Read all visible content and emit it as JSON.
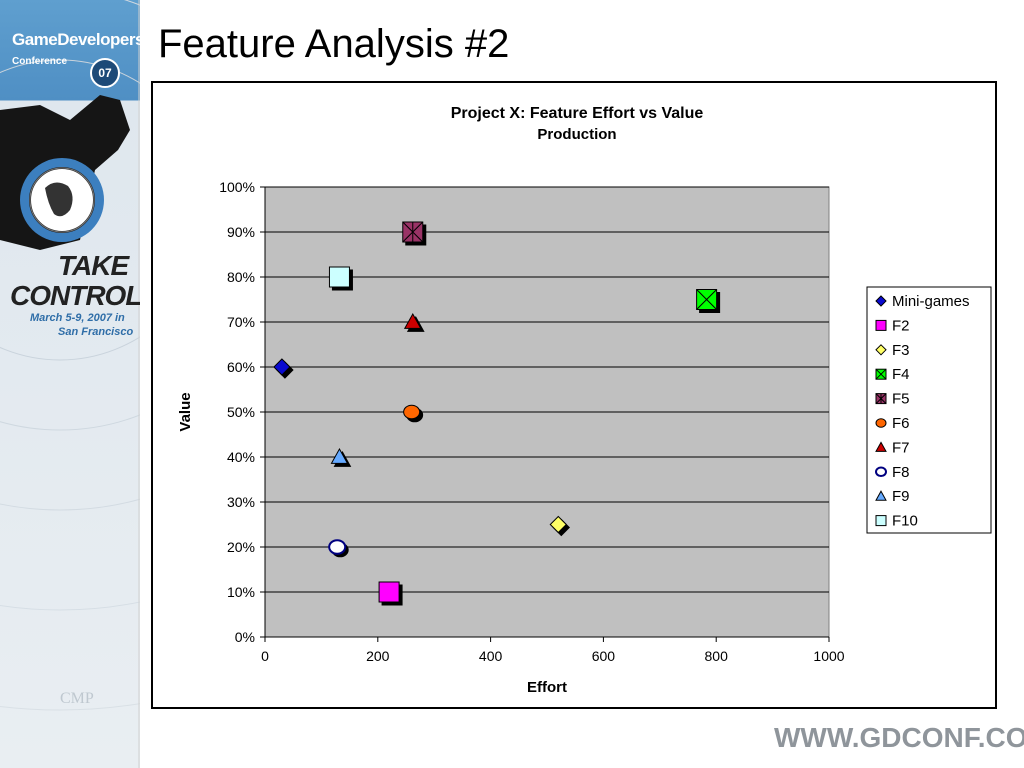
{
  "slide": {
    "title": "Feature Analysis #2",
    "footer_url": "WWW.GDCONF.COM"
  },
  "sidebar": {
    "brand_line1": "GameDevelopers",
    "brand_line2": "Conference",
    "brand_year": "07",
    "take_line1": "TAKE",
    "take_line2": "CONTROL",
    "dates_line1": "March 5-9, 2007 in",
    "dates_line2": "San Francisco",
    "cmp_logo": "CMP"
  },
  "chart_data": {
    "type": "scatter",
    "title": "Project X: Feature Effort vs Value",
    "subtitle": "Production",
    "xlabel": "Effort",
    "ylabel": "Value",
    "xlim": [
      0,
      1000
    ],
    "ylim": [
      0,
      1
    ],
    "x_ticks": [
      0,
      200,
      400,
      600,
      800,
      1000
    ],
    "y_ticks": [
      0,
      0.1,
      0.2,
      0.3,
      0.4,
      0.5,
      0.6,
      0.7,
      0.8,
      0.9,
      1.0
    ],
    "y_tick_labels": [
      "0%",
      "10%",
      "20%",
      "30%",
      "40%",
      "50%",
      "60%",
      "70%",
      "80%",
      "90%",
      "100%"
    ],
    "grid": "horizontal",
    "legend": "right",
    "plot_background": "#c0c0c0",
    "series": [
      {
        "name": "Mini-games",
        "marker": "diamond",
        "color": "#0a0ad0",
        "x": 30,
        "y": 0.6
      },
      {
        "name": "F2",
        "marker": "square",
        "color": "#ff00ff",
        "x": 220,
        "y": 0.1
      },
      {
        "name": "F3",
        "marker": "diamond",
        "color": "#ffff66",
        "x": 520,
        "y": 0.25
      },
      {
        "name": "F4",
        "marker": "square-x",
        "color": "#00ff00",
        "x": 783,
        "y": 0.75
      },
      {
        "name": "F5",
        "marker": "square-star",
        "color": "#993366",
        "x": 262,
        "y": 0.9
      },
      {
        "name": "F6",
        "marker": "circle",
        "color": "#ff6600",
        "x": 260,
        "y": 0.5
      },
      {
        "name": "F7",
        "marker": "triangle",
        "color": "#cc0000",
        "x": 262,
        "y": 0.7
      },
      {
        "name": "F8",
        "marker": "circle-open",
        "color": "#000080",
        "x": 128,
        "y": 0.2
      },
      {
        "name": "F9",
        "marker": "triangle",
        "color": "#66aaff",
        "x": 132,
        "y": 0.4
      },
      {
        "name": "F10",
        "marker": "square",
        "color": "#ccffff",
        "x": 132,
        "y": 0.8
      }
    ]
  }
}
